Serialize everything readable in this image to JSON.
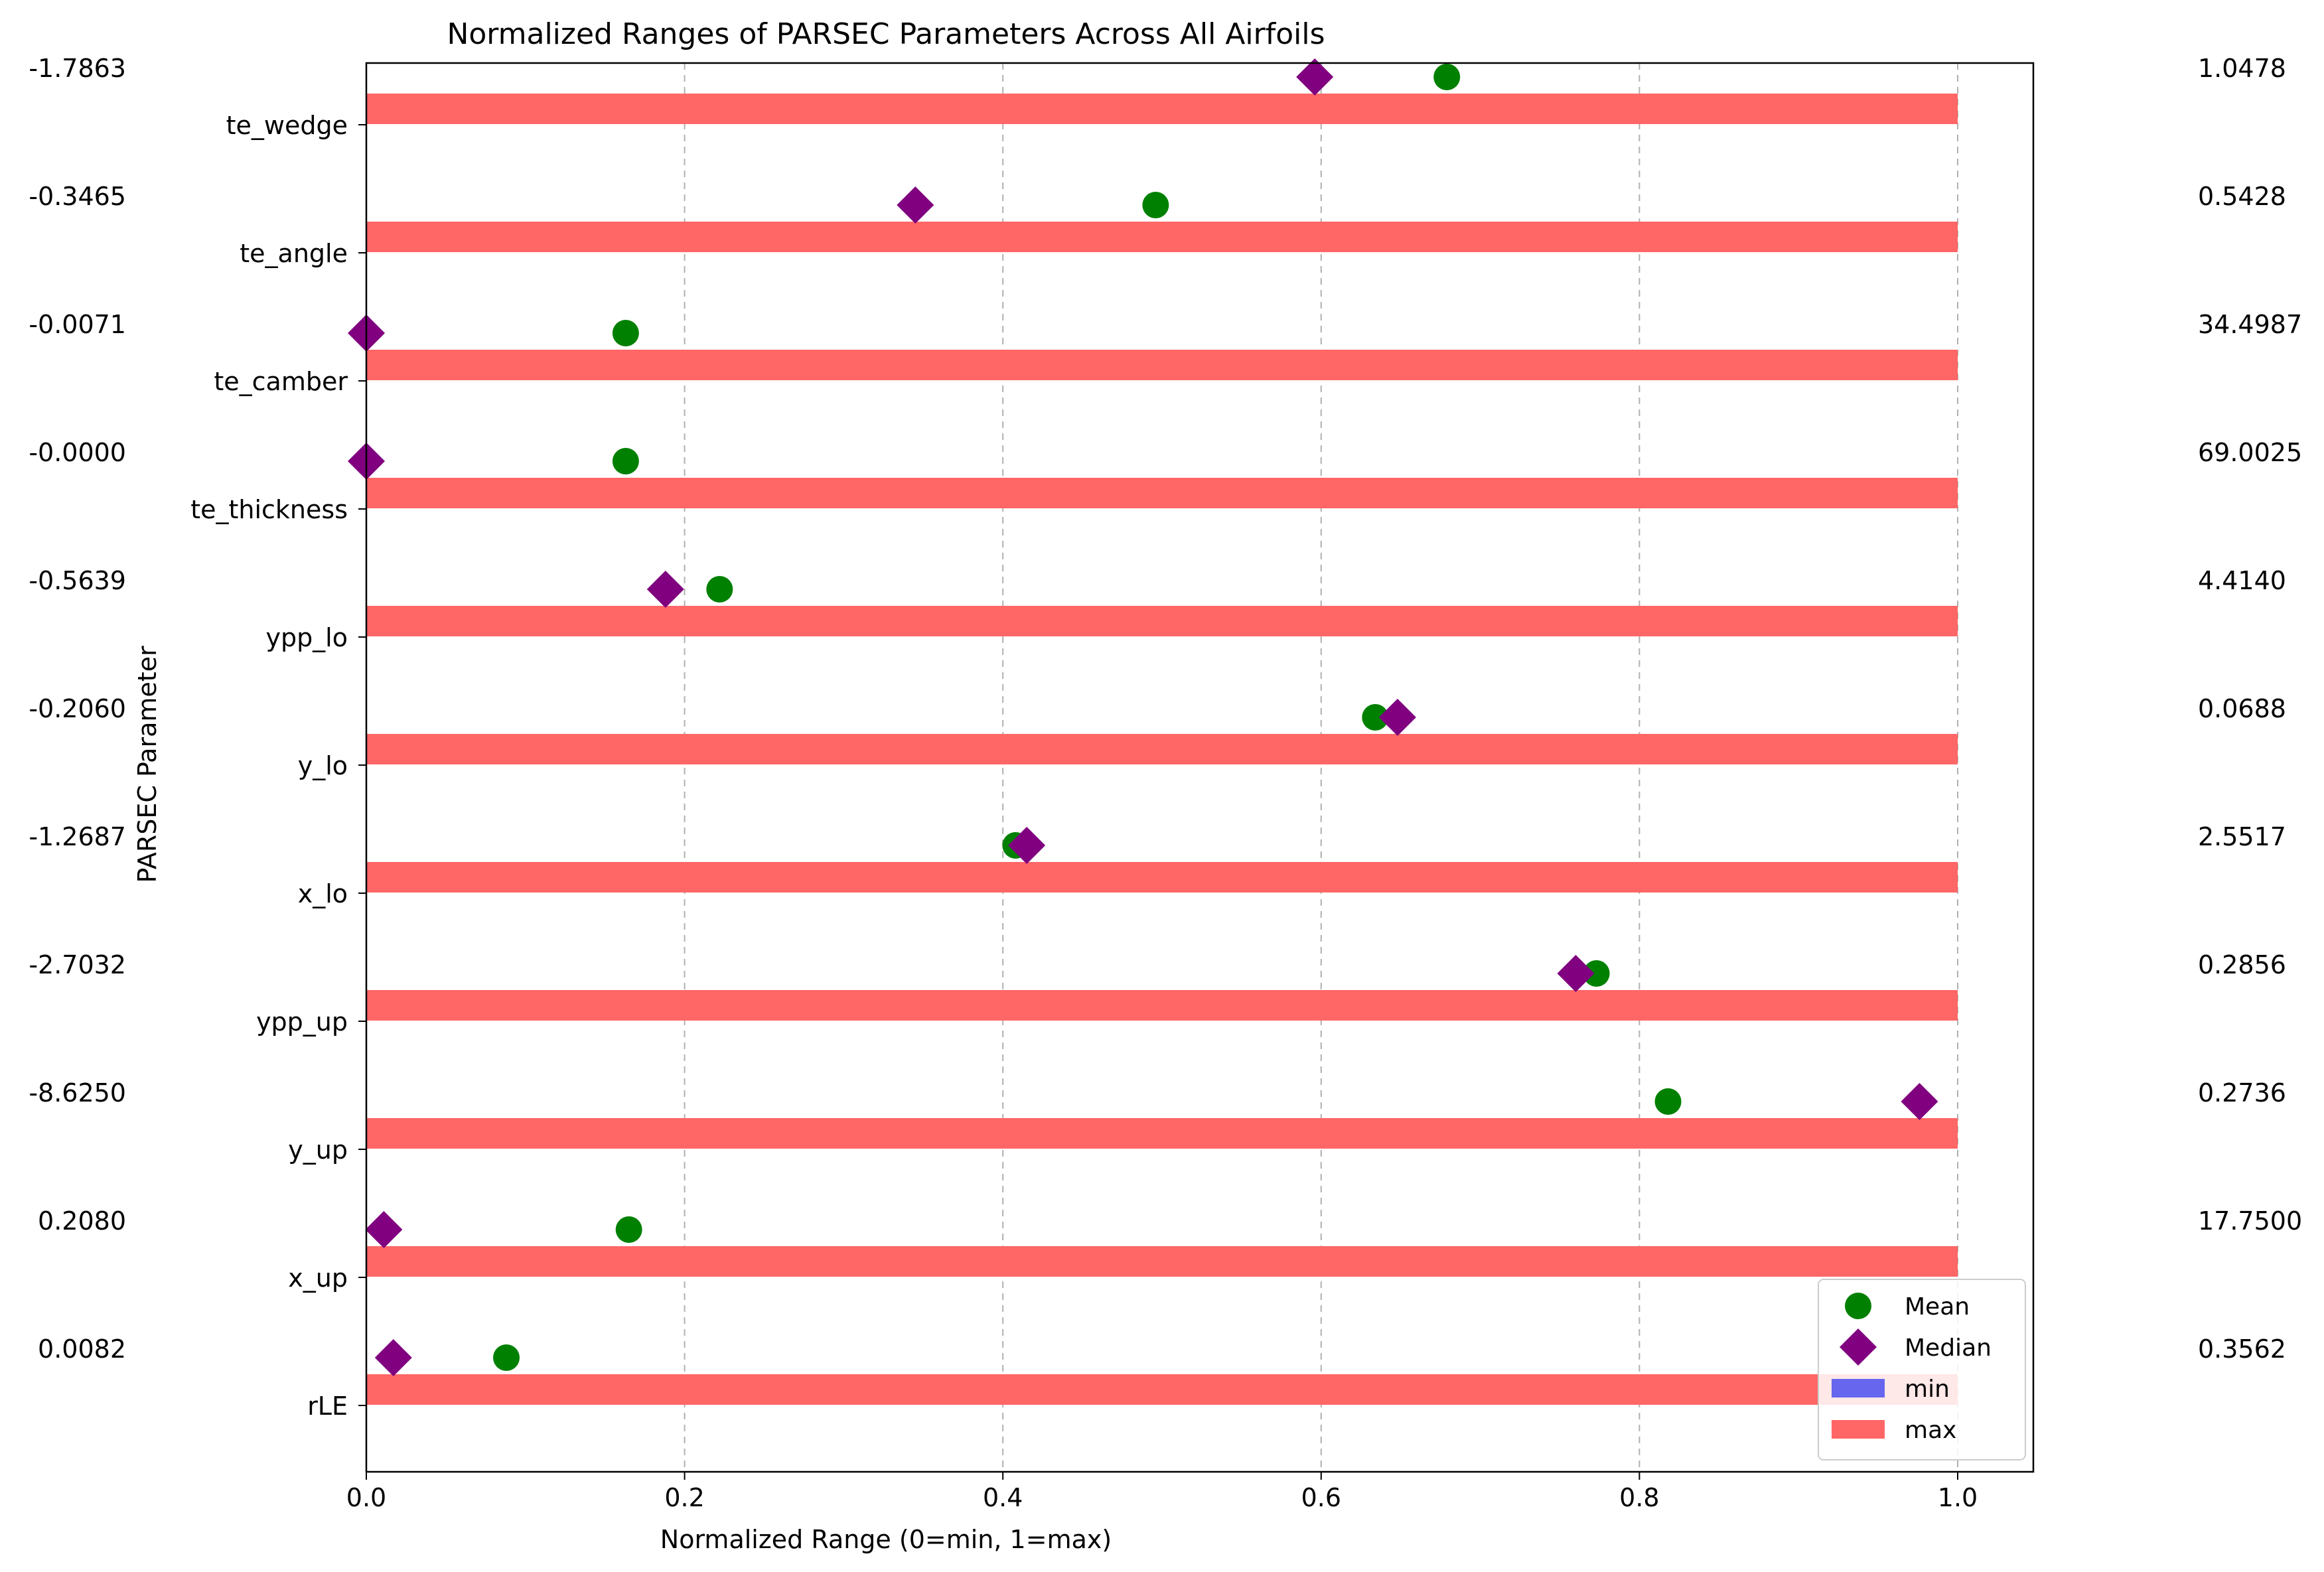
{
  "chart_data": {
    "type": "bar",
    "title": "Normalized Ranges of PARSEC Parameters Across All Airfoils",
    "xlabel": "Normalized Range (0=min, 1=max)",
    "ylabel": "PARSEC Parameter",
    "xlim": [
      0,
      1.05
    ],
    "xticks": [
      0.0,
      0.2,
      0.4,
      0.6,
      0.8,
      1.0
    ],
    "xtick_labels": [
      "0.0",
      "0.2",
      "0.4",
      "0.6",
      "0.8",
      "1.0"
    ],
    "grid": "x-dashed",
    "categories": [
      "rLE",
      "x_up",
      "y_up",
      "ypp_up",
      "x_lo",
      "y_lo",
      "ypp_lo",
      "te_thickness",
      "te_camber",
      "te_angle",
      "te_wedge"
    ],
    "min_labels": [
      "0.0082",
      "0.2080",
      "-8.6250",
      "-2.7032",
      "-1.2687",
      "-0.2060",
      "-0.5639",
      "-0.0000",
      "-0.0071",
      "-0.3465",
      "-1.7863"
    ],
    "max_labels": [
      "0.3562",
      "17.7500",
      "0.2736",
      "0.2856",
      "2.5517",
      "0.0688",
      "4.4140",
      "69.0025",
      "34.4987",
      "0.5428",
      "1.0478"
    ],
    "series": [
      {
        "name": "min",
        "color": "#6666ee",
        "values": [
          0,
          0,
          0,
          0,
          0,
          0,
          0,
          0,
          0,
          0,
          0
        ]
      },
      {
        "name": "max",
        "color": "#ff6666",
        "values": [
          1,
          1,
          1,
          1,
          1,
          1,
          1,
          1,
          1,
          1,
          1
        ]
      },
      {
        "name": "Mean",
        "color": "#008000",
        "marker": "circle",
        "values": [
          0.088,
          0.165,
          0.818,
          0.773,
          0.408,
          0.634,
          0.222,
          0.163,
          0.163,
          0.496,
          0.679
        ]
      },
      {
        "name": "Median",
        "color": "#800080",
        "marker": "diamond",
        "values": [
          0.017,
          0.011,
          0.976,
          0.76,
          0.415,
          0.648,
          0.188,
          0.0,
          0.0,
          0.345,
          0.596
        ]
      }
    ],
    "legend": {
      "placement": "lower-right",
      "entries": [
        "Mean",
        "Median",
        "min",
        "max"
      ]
    }
  }
}
